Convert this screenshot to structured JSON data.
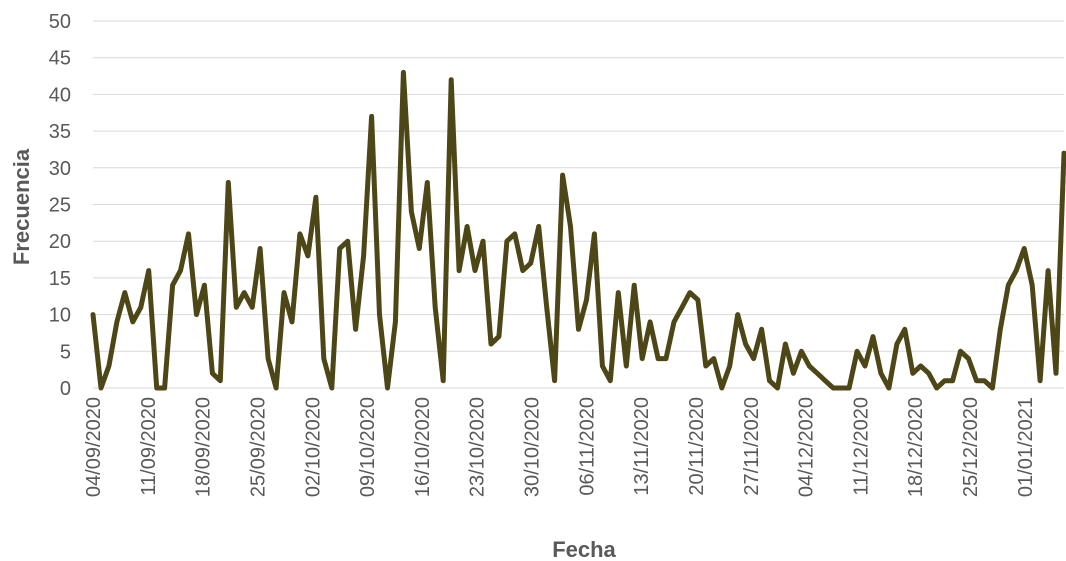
{
  "chart_data": {
    "type": "line",
    "xlabel": "Fecha",
    "ylabel": "Frecuencia",
    "ylim": [
      0,
      50
    ],
    "yticks": [
      0,
      5,
      10,
      15,
      20,
      25,
      30,
      35,
      40,
      45,
      50
    ],
    "grid": "horizontal",
    "legend": "none",
    "x_tick_labels": [
      "04/09/2020",
      "11/09/2020",
      "18/09/2020",
      "25/09/2020",
      "02/10/2020",
      "09/10/2020",
      "16/10/2020",
      "23/10/2020",
      "30/10/2020",
      "06/11/2020",
      "13/11/2020",
      "20/11/2020",
      "27/11/2020",
      "04/12/2020",
      "11/12/2020",
      "18/12/2020",
      "25/12/2020",
      "01/01/2021"
    ],
    "x_start": "04/09/2020",
    "x_end": "06/01/2021",
    "line_color": "#4d4616",
    "values": [
      10,
      0,
      3,
      9,
      13,
      9,
      11,
      16,
      0,
      0,
      14,
      16,
      21,
      10,
      14,
      2,
      1,
      28,
      11,
      13,
      11,
      19,
      4,
      0,
      13,
      9,
      21,
      18,
      26,
      4,
      0,
      19,
      20,
      8,
      18,
      37,
      10,
      0,
      9,
      43,
      24,
      19,
      28,
      11,
      1,
      42,
      16,
      22,
      16,
      20,
      6,
      7,
      20,
      21,
      16,
      17,
      22,
      11,
      1,
      29,
      22,
      8,
      12,
      21,
      3,
      1,
      13,
      3,
      14,
      4,
      9,
      4,
      4,
      9,
      11,
      13,
      12,
      3,
      4,
      0,
      3,
      10,
      6,
      4,
      8,
      1,
      0,
      6,
      2,
      5,
      3,
      2,
      1,
      0,
      0,
      0,
      5,
      3,
      7,
      2,
      0,
      6,
      8,
      2,
      3,
      2,
      0,
      1,
      1,
      5,
      4,
      1,
      1,
      0,
      8,
      14,
      16,
      19,
      14,
      1,
      16,
      2,
      32
    ]
  }
}
